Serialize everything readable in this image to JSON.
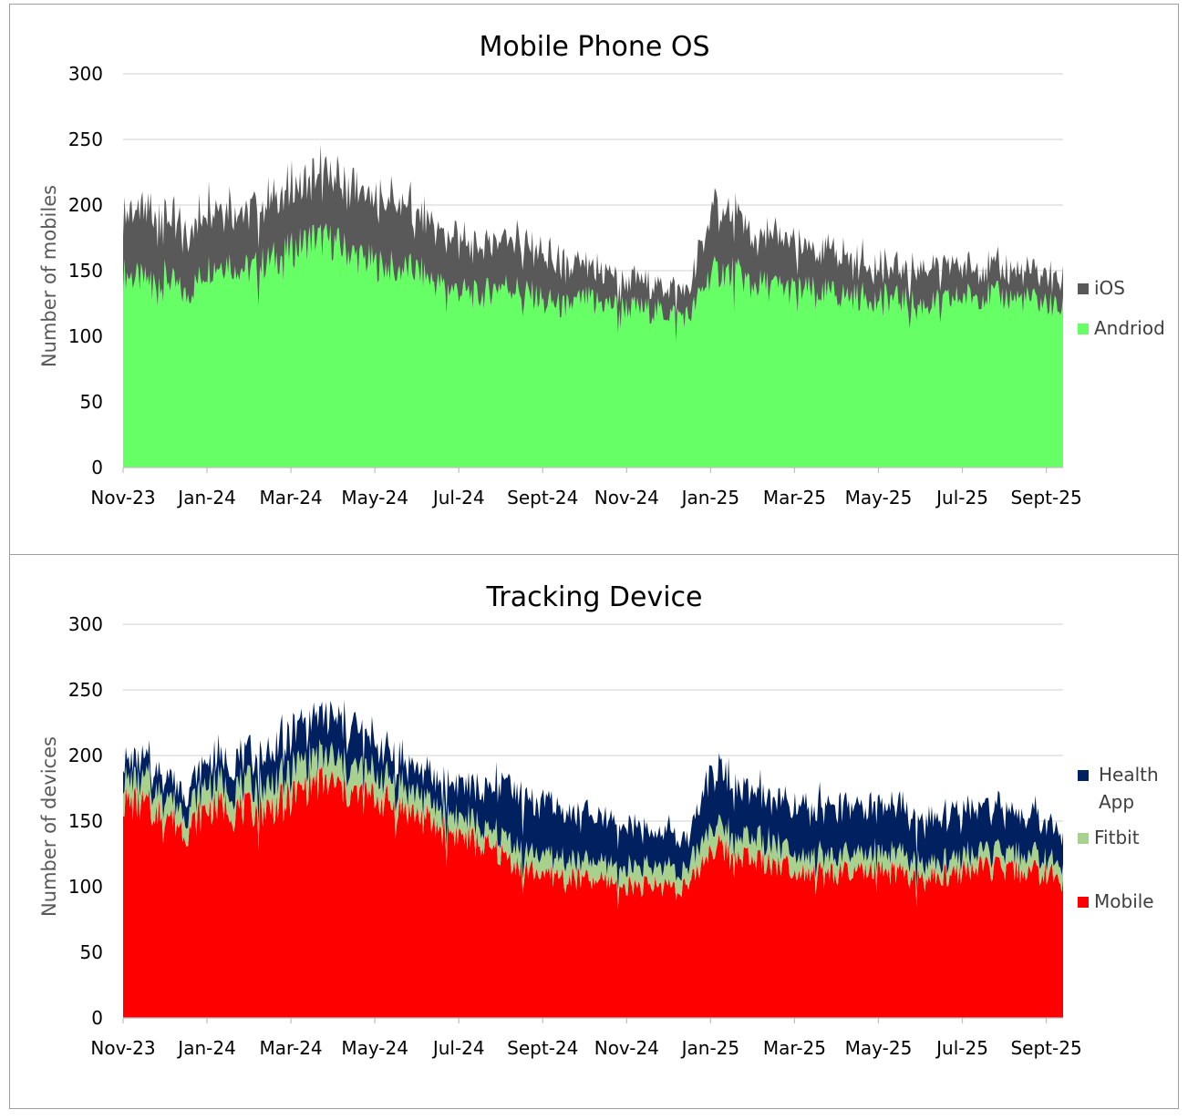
{
  "chart_data": [
    {
      "type": "area",
      "stacked": true,
      "title": "Mobile Phone OS",
      "xlabel": "",
      "ylabel": "Number of mobiles",
      "ylim": [
        0,
        300
      ],
      "yticks": [
        0,
        50,
        100,
        150,
        200,
        250,
        300
      ],
      "xticks": [
        "Nov-23",
        "Jan-24",
        "Mar-24",
        "May-24",
        "Jul-24",
        "Sept-24",
        "Nov-24",
        "Jan-25",
        "Mar-25",
        "May-25",
        "Jul-25",
        "Sept-25"
      ],
      "x_month_offsets": [
        0,
        2,
        4,
        6,
        8,
        10,
        12,
        14,
        16,
        18,
        20,
        22
      ],
      "x_month_span": 22.4,
      "grid": true,
      "legend_position": "right",
      "x": [
        0,
        0.5,
        1,
        1.5,
        2,
        2.5,
        3,
        3.5,
        4,
        4.5,
        5,
        5.5,
        6,
        6.5,
        7,
        7.5,
        8,
        8.5,
        9,
        9.5,
        10,
        10.5,
        11,
        11.5,
        12,
        12.5,
        13,
        13.5,
        14,
        14.5,
        15,
        15.5,
        16,
        16.5,
        17,
        17.5,
        18,
        18.5,
        19,
        19.5,
        20,
        20.5,
        21,
        21.5,
        22,
        22.4
      ],
      "series": [
        {
          "name": "Andriod",
          "color": "#66ff66",
          "values": [
            148,
            142,
            146,
            130,
            152,
            158,
            150,
            158,
            165,
            175,
            172,
            162,
            155,
            152,
            150,
            140,
            135,
            130,
            140,
            135,
            128,
            122,
            128,
            125,
            122,
            120,
            118,
            115,
            148,
            150,
            140,
            138,
            135,
            134,
            132,
            130,
            130,
            128,
            124,
            125,
            130,
            132,
            130,
            128,
            125,
            120
          ]
        },
        {
          "name": "iOS",
          "color": "#595959",
          "values": [
            48,
            52,
            50,
            45,
            48,
            45,
            45,
            45,
            45,
            50,
            52,
            50,
            48,
            50,
            45,
            40,
            40,
            38,
            40,
            38,
            35,
            30,
            25,
            25,
            20,
            20,
            20,
            20,
            45,
            45,
            40,
            38,
            35,
            32,
            30,
            28,
            25,
            22,
            28,
            28,
            24,
            22,
            22,
            20,
            22,
            20
          ]
        }
      ]
    },
    {
      "type": "area",
      "stacked": true,
      "title": "Tracking Device",
      "xlabel": "",
      "ylabel": "Number of devices",
      "ylim": [
        0,
        300
      ],
      "yticks": [
        0,
        50,
        100,
        150,
        200,
        250,
        300
      ],
      "xticks": [
        "Nov-23",
        "Jan-24",
        "Mar-24",
        "May-24",
        "Jul-24",
        "Sept-24",
        "Nov-24",
        "Jan-25",
        "Mar-25",
        "May-25",
        "Jul-25",
        "Sept-25"
      ],
      "x_month_offsets": [
        0,
        2,
        4,
        6,
        8,
        10,
        12,
        14,
        16,
        18,
        20,
        22
      ],
      "x_month_span": 22.4,
      "grid": true,
      "legend_position": "right",
      "x": [
        0,
        0.5,
        1,
        1.5,
        2,
        2.5,
        3,
        3.5,
        4,
        4.5,
        5,
        5.5,
        6,
        6.5,
        7,
        7.5,
        8,
        8.5,
        9,
        9.5,
        10,
        10.5,
        11,
        11.5,
        12,
        12.5,
        13,
        13.5,
        14,
        14.5,
        15,
        15.5,
        16,
        16.5,
        17,
        17.5,
        18,
        18.5,
        19,
        19.5,
        20,
        20.5,
        21,
        21.5,
        22,
        22.4
      ],
      "series": [
        {
          "name": "Mobile",
          "color": "#ff0000",
          "values": [
            165,
            162,
            158,
            142,
            160,
            162,
            158,
            160,
            168,
            180,
            178,
            170,
            168,
            162,
            155,
            145,
            140,
            132,
            125,
            115,
            110,
            108,
            105,
            105,
            102,
            100,
            102,
            100,
            130,
            128,
            122,
            118,
            115,
            112,
            110,
            110,
            112,
            110,
            105,
            108,
            112,
            115,
            112,
            112,
            110,
            105
          ]
        },
        {
          "name": "Fitbit",
          "color": "#a9d18e",
          "values": [
            18,
            18,
            16,
            14,
            18,
            18,
            18,
            18,
            20,
            20,
            20,
            18,
            18,
            18,
            16,
            15,
            14,
            14,
            14,
            14,
            14,
            14,
            14,
            14,
            14,
            14,
            14,
            14,
            18,
            16,
            16,
            16,
            14,
            14,
            14,
            14,
            14,
            14,
            12,
            12,
            12,
            12,
            12,
            12,
            12,
            12
          ]
        },
        {
          "name": "Health App",
          "color": "#002060",
          "values": [
            15,
            15,
            16,
            14,
            18,
            20,
            22,
            24,
            28,
            30,
            32,
            30,
            25,
            20,
            20,
            20,
            25,
            25,
            40,
            40,
            40,
            35,
            35,
            32,
            30,
            28,
            26,
            25,
            40,
            40,
            35,
            35,
            38,
            38,
            38,
            36,
            34,
            34,
            32,
            34,
            34,
            32,
            32,
            30,
            28,
            26
          ]
        }
      ]
    }
  ]
}
